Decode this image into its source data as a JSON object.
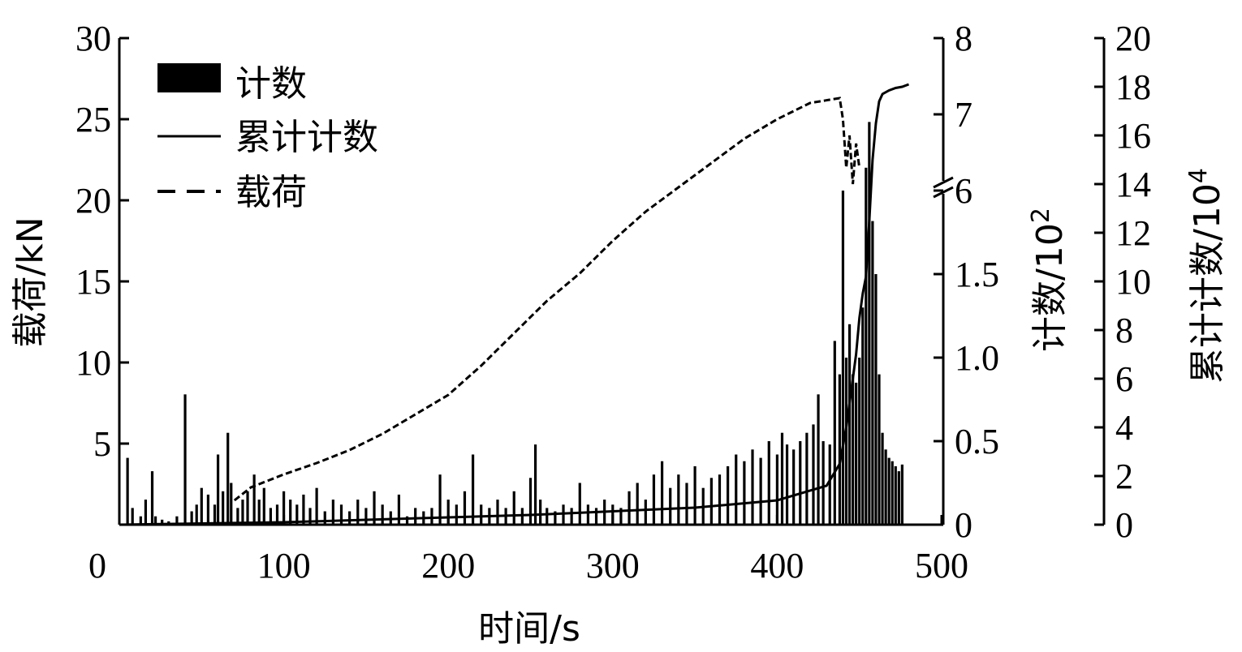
{
  "chart_data": {
    "type": "bar",
    "xlabel": "时间/s",
    "ylabel_left": "载荷/kN",
    "ylabel_right1": "计数/10",
    "ylabel_right1_sup": "2",
    "ylabel_right2": "累计计数/10",
    "ylabel_right2_sup": "4",
    "xlim": [
      0,
      500
    ],
    "ylim_left": [
      0,
      30
    ],
    "ylim_right2": [
      0,
      20
    ],
    "right1_axis_break": {
      "lower_range": [
        0,
        2
      ],
      "upper_range": [
        6,
        8
      ],
      "break_at": 2
    },
    "x_ticks": [
      "0",
      "100",
      "200",
      "300",
      "400",
      "500"
    ],
    "y_left_ticks": [
      "5",
      "10",
      "15",
      "20",
      "25",
      "30"
    ],
    "y_right1_ticks": [
      "0",
      "0.5",
      "1.0",
      "1.5",
      "6",
      "7",
      "8"
    ],
    "y_right2_ticks": [
      "0",
      "2",
      "4",
      "6",
      "8",
      "10",
      "12",
      "14",
      "16",
      "18",
      "20"
    ],
    "legend": {
      "position": "top-left",
      "entries": [
        {
          "label": "计数",
          "style": "bar"
        },
        {
          "label": "累计计数",
          "style": "solid-line"
        },
        {
          "label": "载荷",
          "style": "dashed-line"
        }
      ]
    },
    "series": [
      {
        "name": "计数",
        "axis": "right1",
        "style": "bar",
        "color": "#000000",
        "x": [
          5,
          8,
          13,
          16,
          20,
          22,
          26,
          30,
          35,
          40,
          44,
          47,
          50,
          54,
          58,
          60,
          63,
          66,
          68,
          72,
          75,
          78,
          82,
          85,
          88,
          92,
          96,
          100,
          104,
          108,
          112,
          116,
          120,
          125,
          130,
          135,
          140,
          145,
          150,
          155,
          160,
          165,
          170,
          175,
          180,
          185,
          190,
          195,
          200,
          205,
          210,
          215,
          220,
          225,
          230,
          235,
          240,
          245,
          250,
          253,
          256,
          260,
          265,
          270,
          275,
          280,
          285,
          290,
          295,
          300,
          305,
          310,
          315,
          320,
          325,
          330,
          335,
          340,
          345,
          350,
          355,
          360,
          365,
          370,
          375,
          380,
          385,
          390,
          395,
          400,
          403,
          406,
          410,
          414,
          418,
          422,
          425,
          428,
          432,
          435,
          438,
          440,
          442,
          444,
          446,
          448,
          450,
          452,
          454,
          456,
          458,
          460,
          462,
          464,
          466,
          468,
          470,
          472,
          474,
          476
        ],
        "y": [
          0.4,
          0.1,
          0.05,
          0.15,
          0.32,
          0.05,
          0.03,
          0.02,
          0.05,
          0.78,
          0.08,
          0.12,
          0.22,
          0.18,
          0.12,
          0.42,
          0.2,
          0.55,
          0.25,
          0.1,
          0.15,
          0.2,
          0.3,
          0.15,
          0.22,
          0.1,
          0.12,
          0.2,
          0.15,
          0.12,
          0.18,
          0.1,
          0.22,
          0.08,
          0.15,
          0.12,
          0.08,
          0.15,
          0.1,
          0.2,
          0.12,
          0.08,
          0.18,
          0.05,
          0.1,
          0.08,
          0.1,
          0.3,
          0.15,
          0.12,
          0.2,
          0.42,
          0.12,
          0.1,
          0.15,
          0.1,
          0.2,
          0.1,
          0.28,
          0.48,
          0.15,
          0.1,
          0.08,
          0.12,
          0.1,
          0.25,
          0.12,
          0.1,
          0.15,
          0.12,
          0.1,
          0.2,
          0.25,
          0.15,
          0.3,
          0.38,
          0.22,
          0.3,
          0.25,
          0.35,
          0.22,
          0.28,
          0.3,
          0.35,
          0.42,
          0.38,
          0.45,
          0.4,
          0.5,
          0.42,
          0.55,
          0.48,
          0.45,
          0.5,
          0.55,
          0.6,
          0.78,
          0.5,
          0.48,
          1.1,
          0.9,
          2.0,
          1.0,
          1.2,
          0.9,
          0.85,
          1.0,
          1.3,
          6.3,
          6.9,
          5.6,
          1.5,
          0.9,
          0.55,
          0.45,
          0.4,
          0.38,
          0.35,
          0.32,
          0.36
        ]
      },
      {
        "name": "累计计数",
        "axis": "right2",
        "style": "solid-line",
        "color": "#000000",
        "x": [
          0,
          50,
          100,
          150,
          200,
          250,
          300,
          350,
          400,
          430,
          438,
          442,
          445,
          448,
          450,
          452,
          454,
          456,
          458,
          460,
          462,
          464,
          468,
          472,
          476,
          480
        ],
        "y": [
          0,
          0.05,
          0.1,
          0.2,
          0.3,
          0.4,
          0.55,
          0.7,
          1.0,
          1.6,
          2.5,
          4.0,
          5.5,
          7.0,
          8.5,
          9.5,
          10.2,
          12.5,
          15.0,
          16.5,
          17.4,
          17.7,
          17.85,
          17.95,
          18.0,
          18.1
        ]
      },
      {
        "name": "载荷",
        "axis": "left",
        "style": "dashed-line",
        "color": "#000000",
        "x": [
          70,
          80,
          100,
          120,
          140,
          160,
          180,
          200,
          220,
          240,
          260,
          280,
          300,
          320,
          340,
          360,
          380,
          400,
          420,
          438,
          440,
          442,
          444,
          446,
          448,
          450
        ],
        "y": [
          1.5,
          2.3,
          3.1,
          3.8,
          4.6,
          5.6,
          6.8,
          8.0,
          9.8,
          11.8,
          13.8,
          15.5,
          17.5,
          19.3,
          20.8,
          22.3,
          23.8,
          25.0,
          26.0,
          26.3,
          25.0,
          22.0,
          24.0,
          21.0,
          23.5,
          22.0
        ]
      }
    ]
  }
}
